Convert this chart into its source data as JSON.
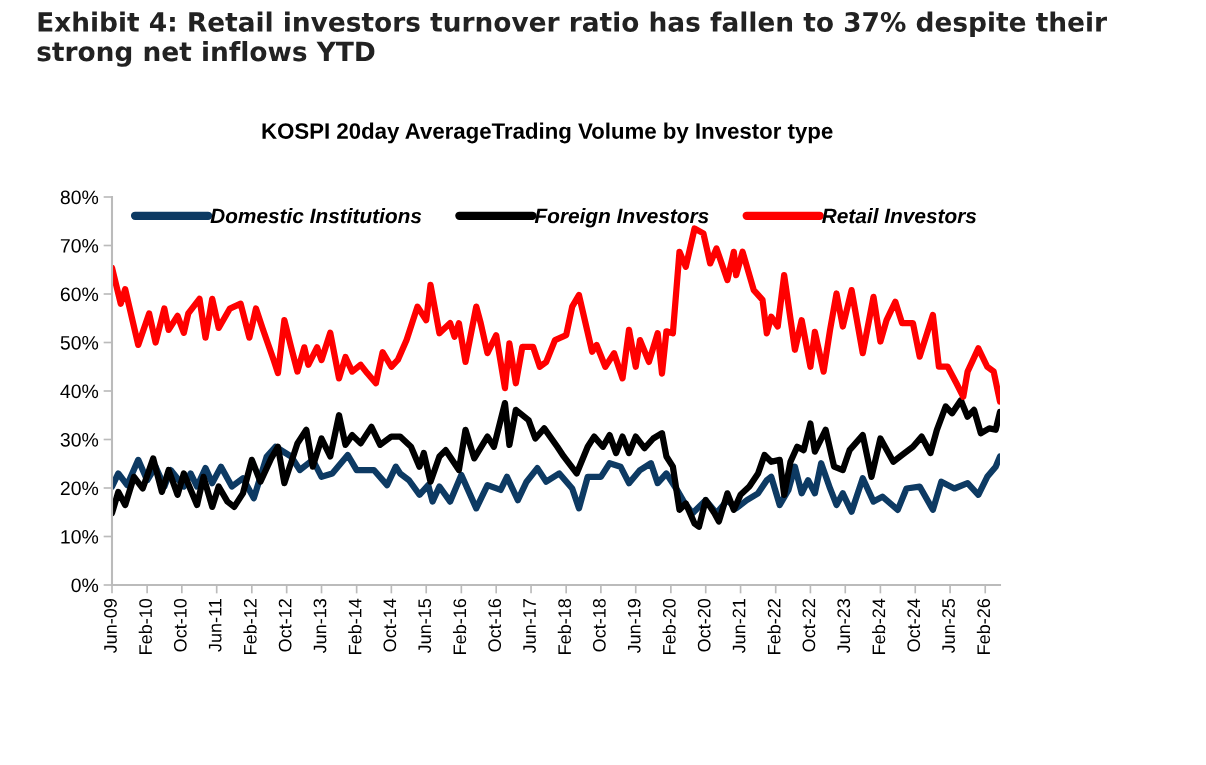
{
  "chart_data": {
    "type": "line",
    "title": "Exhibit 4: Retail investors turnover ratio has fallen to 37% despite their strong net inflows YTD",
    "subtitle": "KOSPI 20day AverageTrading Volume by Investor type",
    "xlim": [
      "2009-06-01",
      "2026-05-15"
    ],
    "xticks": [
      {
        "value": "2009-06-01",
        "label": "Jun-09"
      },
      {
        "value": "2010-02-01",
        "label": "Feb-10"
      },
      {
        "value": "2010-10-01",
        "label": "Oct-10"
      },
      {
        "value": "2011-06-01",
        "label": "Jun-11"
      },
      {
        "value": "2012-02-01",
        "label": "Feb-12"
      },
      {
        "value": "2012-10-01",
        "label": "Oct-12"
      },
      {
        "value": "2013-06-01",
        "label": "Jun-13"
      },
      {
        "value": "2014-02-01",
        "label": "Feb-14"
      },
      {
        "value": "2014-10-01",
        "label": "Oct-14"
      },
      {
        "value": "2015-06-01",
        "label": "Jun-15"
      },
      {
        "value": "2016-02-01",
        "label": "Feb-16"
      },
      {
        "value": "2016-10-01",
        "label": "Oct-16"
      },
      {
        "value": "2017-06-01",
        "label": "Jun-17"
      },
      {
        "value": "2018-02-01",
        "label": "Feb-18"
      },
      {
        "value": "2018-10-01",
        "label": "Oct-18"
      },
      {
        "value": "2019-06-01",
        "label": "Jun-19"
      },
      {
        "value": "2020-02-01",
        "label": "Feb-20"
      },
      {
        "value": "2020-10-01",
        "label": "Oct-20"
      },
      {
        "value": "2021-06-01",
        "label": "Jun-21"
      },
      {
        "value": "2022-02-01",
        "label": "Feb-22"
      },
      {
        "value": "2022-10-01",
        "label": "Oct-22"
      },
      {
        "value": "2023-06-01",
        "label": "Jun-23"
      },
      {
        "value": "2024-02-01",
        "label": "Feb-24"
      },
      {
        "value": "2024-10-01",
        "label": "Oct-24"
      },
      {
        "value": "2025-06-01",
        "label": "Jun-25"
      },
      {
        "value": "2026-02-01",
        "label": "Feb-26"
      }
    ],
    "ylim": [
      0,
      80
    ],
    "yticks": [
      {
        "value": 0,
        "label": "0%"
      },
      {
        "value": 10,
        "label": "10%"
      },
      {
        "value": 20,
        "label": "20%"
      },
      {
        "value": 30,
        "label": "30%"
      },
      {
        "value": 40,
        "label": "40%"
      },
      {
        "value": 50,
        "label": "50%"
      },
      {
        "value": 60,
        "label": "60%"
      },
      {
        "value": 70,
        "label": "70%"
      },
      {
        "value": 80,
        "label": "80%"
      }
    ],
    "grid": false,
    "legend": "top",
    "marker": "none",
    "line_style": "solid",
    "series": [
      {
        "name": "Domestic Institutions",
        "color": "#0d3a63",
        "x": [
          "2009-06-01",
          "2009-07-15",
          "2009-09-15",
          "2009-12-01",
          "2010-02-01",
          "2010-04-01",
          "2010-06-01",
          "2010-07-15",
          "2010-10-15",
          "2010-12-01",
          "2011-01-15",
          "2011-03-15",
          "2011-05-01",
          "2011-07-01",
          "2011-09-15",
          "2011-12-01",
          "2012-02-15",
          "2012-05-15",
          "2012-07-15",
          "2012-11-01",
          "2013-01-01",
          "2013-04-01",
          "2013-06-01",
          "2013-08-15",
          "2013-12-01",
          "2014-02-01",
          "2014-06-01",
          "2014-09-01",
          "2014-11-01",
          "2014-12-01",
          "2015-02-01",
          "2015-04-15",
          "2015-06-15",
          "2015-07-15",
          "2015-09-01",
          "2015-11-15",
          "2016-02-01",
          "2016-05-15",
          "2016-08-01",
          "2016-11-01",
          "2016-12-15",
          "2017-03-01",
          "2017-05-01",
          "2017-07-15",
          "2017-09-15",
          "2017-12-15",
          "2018-03-15",
          "2018-05-01",
          "2018-07-01",
          "2018-10-01",
          "2018-12-01",
          "2019-02-15",
          "2019-04-15",
          "2019-07-01",
          "2019-09-15",
          "2019-11-01",
          "2020-01-01",
          "2020-03-15",
          "2020-05-01",
          "2020-07-01",
          "2020-10-01",
          "2020-12-15",
          "2021-03-01",
          "2021-05-01",
          "2021-07-15",
          "2021-10-01",
          "2021-12-01",
          "2022-01-01",
          "2022-03-01",
          "2022-05-01",
          "2022-06-15",
          "2022-08-01",
          "2022-09-15",
          "2022-11-01",
          "2022-12-15",
          "2023-02-15",
          "2023-04-01",
          "2023-05-15",
          "2023-07-15",
          "2023-10-01",
          "2023-12-15",
          "2024-02-15",
          "2024-06-01",
          "2024-08-01",
          "2024-11-01",
          "2025-02-01",
          "2025-04-01",
          "2025-07-01",
          "2025-10-01",
          "2025-12-15",
          "2026-02-15",
          "2026-04-15",
          "2026-05-15"
        ],
        "values": [
          20.3,
          23,
          20.6,
          25.8,
          21.6,
          24.4,
          20.3,
          23.7,
          20.3,
          23,
          20.3,
          24.1,
          21,
          24.4,
          20.3,
          22,
          17.9,
          26.5,
          28.5,
          26.5,
          23.7,
          25.8,
          22.3,
          23,
          26.8,
          23.7,
          23.7,
          20.6,
          24.4,
          23,
          21.6,
          18.6,
          20.6,
          17.2,
          20.3,
          17.2,
          22.7,
          15.8,
          20.6,
          19.6,
          22.3,
          17.5,
          21.3,
          24.1,
          21.3,
          23,
          19.9,
          15.8,
          22.3,
          22.3,
          25.1,
          24.4,
          21,
          23.7,
          25.1,
          21,
          23,
          19.6,
          17.2,
          14.8,
          17.5,
          14.8,
          17.5,
          15.8,
          17.5,
          18.9,
          21.6,
          22.3,
          16.5,
          19.6,
          24.4,
          18.9,
          21.6,
          18.9,
          25.1,
          19.9,
          16.5,
          18.9,
          15.1,
          22,
          17.2,
          18.2,
          15.5,
          19.9,
          20.3,
          15.5,
          21.3,
          19.9,
          21,
          18.6,
          22.3,
          24.4,
          26.5
        ]
      },
      {
        "name": "Foreign Investors",
        "color": "#000000",
        "x": [
          "2009-06-01",
          "2009-07-15",
          "2009-09-01",
          "2009-11-01",
          "2010-01-01",
          "2010-03-15",
          "2010-05-15",
          "2010-07-01",
          "2010-09-01",
          "2010-10-15",
          "2011-01-15",
          "2011-03-01",
          "2011-05-01",
          "2011-06-15",
          "2011-08-15",
          "2011-10-01",
          "2011-12-01",
          "2012-02-01",
          "2012-04-01",
          "2012-06-15",
          "2012-08-01",
          "2012-09-15",
          "2012-12-15",
          "2013-02-15",
          "2013-04-01",
          "2013-06-01",
          "2013-08-01",
          "2013-10-01",
          "2013-11-15",
          "2014-01-01",
          "2014-03-01",
          "2014-05-15",
          "2014-07-15",
          "2014-10-01",
          "2014-12-01",
          "2015-02-15",
          "2015-04-15",
          "2015-05-15",
          "2015-07-01",
          "2015-09-01",
          "2015-10-15",
          "2016-01-15",
          "2016-03-01",
          "2016-05-01",
          "2016-08-01",
          "2016-09-15",
          "2016-12-01",
          "2017-01-01",
          "2017-02-15",
          "2017-05-15",
          "2017-07-01",
          "2017-09-01",
          "2017-12-01",
          "2018-01-15",
          "2018-04-15",
          "2018-07-01",
          "2018-08-15",
          "2018-10-15",
          "2018-12-01",
          "2019-01-15",
          "2019-03-01",
          "2019-04-15",
          "2019-06-01",
          "2019-08-01",
          "2019-10-01",
          "2019-12-01",
          "2020-01-01",
          "2020-02-15",
          "2020-04-01",
          "2020-05-15",
          "2020-07-15",
          "2020-08-15",
          "2020-10-01",
          "2020-12-01",
          "2021-01-01",
          "2021-03-01",
          "2021-04-15",
          "2021-06-01",
          "2021-08-01",
          "2021-10-01",
          "2021-11-15",
          "2022-01-01",
          "2022-03-01",
          "2022-04-01",
          "2022-05-15",
          "2022-07-01",
          "2022-08-15",
          "2022-10-01",
          "2022-11-01",
          "2023-01-15",
          "2023-03-15",
          "2023-05-15",
          "2023-07-01",
          "2023-10-01",
          "2023-12-01",
          "2024-02-01",
          "2024-05-01",
          "2024-07-01",
          "2024-09-15",
          "2024-11-15",
          "2025-01-15",
          "2025-03-01",
          "2025-05-01",
          "2025-06-15",
          "2025-08-15",
          "2025-10-01",
          "2025-11-15",
          "2026-01-01",
          "2026-03-01",
          "2026-04-15",
          "2026-05-15"
        ],
        "values": [
          14.8,
          19.2,
          16.5,
          22.3,
          19.9,
          26.1,
          19.2,
          23.7,
          18.6,
          23,
          16.5,
          22.3,
          16.1,
          20.3,
          17.2,
          16.1,
          18.9,
          25.8,
          21.3,
          26.1,
          28.5,
          21,
          29.2,
          32,
          24.4,
          30.2,
          26.5,
          35,
          28.9,
          30.9,
          29.2,
          32.6,
          28.9,
          30.6,
          30.6,
          28.5,
          24.4,
          27.2,
          21.3,
          26.5,
          27.8,
          23.7,
          32,
          26.1,
          30.6,
          28.5,
          37.5,
          28.9,
          36.1,
          34,
          30.2,
          32.3,
          28.5,
          26.5,
          23,
          28.5,
          30.6,
          28.5,
          30.9,
          27.2,
          30.6,
          27.2,
          30.6,
          28.2,
          30.2,
          31.3,
          26.5,
          24.4,
          15.5,
          16.8,
          12.7,
          12,
          17.5,
          14.8,
          13.1,
          18.9,
          15.5,
          18.6,
          20.3,
          23,
          26.8,
          25.4,
          25.8,
          18.6,
          25.4,
          28.5,
          27.8,
          33.3,
          27.5,
          32,
          24.4,
          23.7,
          27.8,
          30.9,
          22.3,
          30.2,
          25.4,
          26.8,
          28.5,
          30.6,
          27.2,
          32,
          36.8,
          35.4,
          38.1,
          34.7,
          36.1,
          31.3,
          32.3,
          32,
          35.7
        ]
      },
      {
        "name": "Retail Investors",
        "color": "#ff0000",
        "x": [
          "2009-06-01",
          "2009-08-01",
          "2009-09-01",
          "2009-12-01",
          "2010-02-15",
          "2010-04-01",
          "2010-06-01",
          "2010-07-01",
          "2010-09-01",
          "2010-10-15",
          "2010-11-15",
          "2011-02-01",
          "2011-03-15",
          "2011-05-01",
          "2011-06-15",
          "2011-09-01",
          "2011-11-15",
          "2012-01-15",
          "2012-03-01",
          "2012-04-15",
          "2012-07-01",
          "2012-08-01",
          "2012-09-15",
          "2012-11-01",
          "2012-12-15",
          "2013-02-01",
          "2013-03-01",
          "2013-05-01",
          "2013-06-01",
          "2013-08-01",
          "2013-10-01",
          "2013-11-15",
          "2014-01-01",
          "2014-03-01",
          "2014-04-15",
          "2014-06-15",
          "2014-08-01",
          "2014-10-01",
          "2014-11-15",
          "2015-01-15",
          "2015-04-01",
          "2015-06-01",
          "2015-07-01",
          "2015-09-01",
          "2015-11-15",
          "2015-12-15",
          "2016-01-15",
          "2016-03-01",
          "2016-05-15",
          "2016-06-15",
          "2016-08-01",
          "2016-10-01",
          "2016-12-01",
          "2017-01-01",
          "2017-02-15",
          "2017-04-01",
          "2017-06-15",
          "2017-08-01",
          "2017-09-15",
          "2017-11-15",
          "2018-02-01",
          "2018-03-15",
          "2018-05-01",
          "2018-08-01",
          "2018-09-01",
          "2018-11-01",
          "2019-01-01",
          "2019-03-01",
          "2019-04-15",
          "2019-06-01",
          "2019-07-01",
          "2019-09-01",
          "2019-11-01",
          "2019-12-01",
          "2020-01-01",
          "2020-02-15",
          "2020-04-01",
          "2020-05-15",
          "2020-07-15",
          "2020-09-15",
          "2020-11-01",
          "2020-12-15",
          "2021-03-01",
          "2021-04-15",
          "2021-05-01",
          "2021-06-15",
          "2021-09-01",
          "2021-11-01",
          "2021-12-01",
          "2022-01-01",
          "2022-02-15",
          "2022-04-01",
          "2022-06-15",
          "2022-08-01",
          "2022-10-01",
          "2022-11-01",
          "2023-01-01",
          "2023-02-15",
          "2023-04-01",
          "2023-05-15",
          "2023-07-15",
          "2023-10-01",
          "2023-12-15",
          "2024-02-01",
          "2024-03-15",
          "2024-05-15",
          "2024-07-01",
          "2024-09-15",
          "2024-11-01",
          "2025-02-01",
          "2025-03-15",
          "2025-05-15",
          "2025-07-15",
          "2025-09-01",
          "2025-10-01",
          "2025-12-15",
          "2026-02-15",
          "2026-04-01",
          "2026-05-15"
        ],
        "values": [
          65.4,
          58,
          61,
          49.5,
          56,
          50,
          57,
          52.6,
          55.5,
          52,
          56,
          59,
          51,
          59,
          53,
          57,
          58,
          51,
          57,
          53,
          46.5,
          43.7,
          54.6,
          49,
          44,
          49,
          45.4,
          49,
          46.4,
          52,
          42.6,
          47,
          44,
          45.4,
          43.7,
          41.6,
          48,
          45,
          46.4,
          50.5,
          57.4,
          54.6,
          61.9,
          51.9,
          54,
          51.2,
          54,
          46,
          57.4,
          54,
          47.8,
          51.5,
          40.6,
          49.8,
          41.6,
          49.1,
          49.1,
          45,
          46,
          50.5,
          51.5,
          57.4,
          59.8,
          48.1,
          49.5,
          45,
          47.8,
          42.6,
          52.6,
          45,
          50.5,
          46,
          51.9,
          43.6,
          52.3,
          51.9,
          68.7,
          65.6,
          73.5,
          72.5,
          66.3,
          69.4,
          62.9,
          68.7,
          63.9,
          68.7,
          60.8,
          58.8,
          51.9,
          55.3,
          53.3,
          63.9,
          48.5,
          54.6,
          45,
          52.2,
          44,
          52.6,
          60.1,
          53.3,
          60.8,
          47.8,
          59.4,
          50.2,
          54.6,
          58.4,
          54,
          54,
          47.1,
          55.7,
          45,
          45,
          41.6,
          38.8,
          44,
          48.8,
          45,
          44,
          37.8
        ]
      }
    ]
  }
}
